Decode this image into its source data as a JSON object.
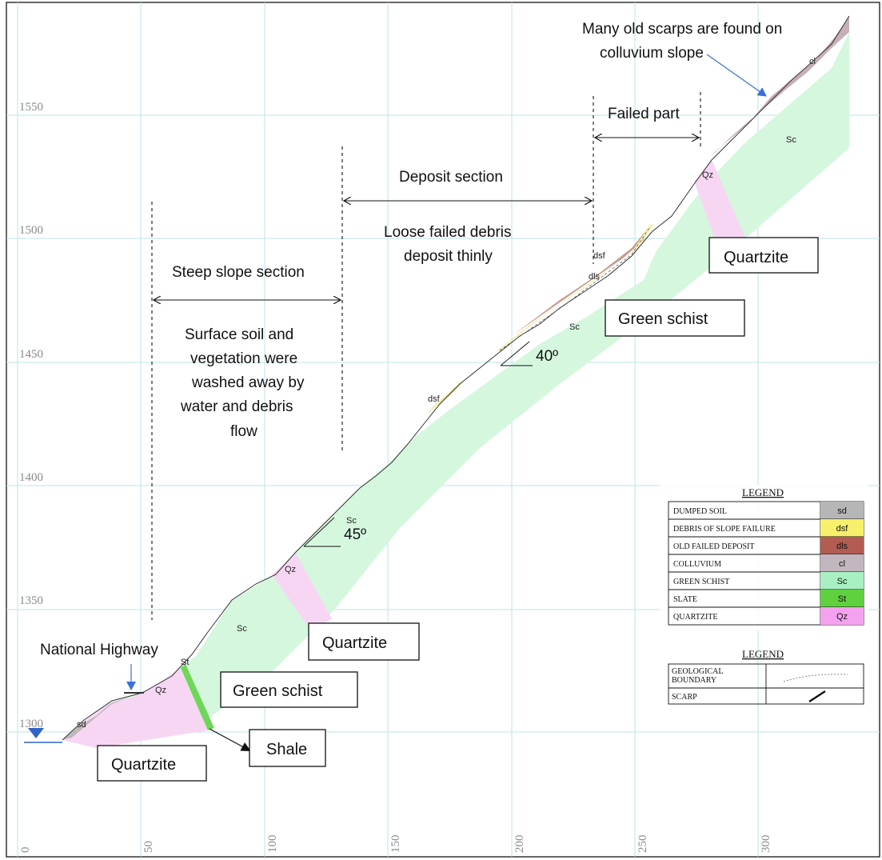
{
  "axes": {
    "x_ticks": [
      "0",
      "50",
      "100",
      "150",
      "200",
      "250",
      "300"
    ],
    "y_ticks": [
      "1300",
      "1350",
      "1400",
      "1450",
      "1500",
      "1550"
    ]
  },
  "annotations": {
    "scarps_note_1": "Many old scarps are found on",
    "scarps_note_2": "colluvium slope",
    "failed_part": "Failed part",
    "deposit_section": "Deposit section",
    "loose_debris_1": "Loose failed debris",
    "loose_debris_2": "deposit thinly",
    "steep_slope_section": "Steep slope section",
    "surface_soil_1": "Surface soil and",
    "surface_soil_2": "vegetation were",
    "surface_soil_3": "washed away by",
    "surface_soil_4": "water and debris",
    "surface_soil_5": "flow",
    "national_highway": "National Highway",
    "angle_40": "40º",
    "angle_45": "45º"
  },
  "boxes": {
    "quartzite_top": "Quartzite",
    "green_schist_upper": "Green schist",
    "quartzite_mid": "Quartzite",
    "green_schist_lower": "Green schist",
    "shale": "Shale",
    "quartzite_bottom": "Quartzite"
  },
  "unit_labels": {
    "cl": "cl",
    "sc_top": "Sc",
    "qz_top": "Qz",
    "dsf_top": "dsf",
    "dls": "dls",
    "sc_mid": "Sc",
    "dsf_mid": "dsf",
    "sc_45": "Sc",
    "qz_mid": "Qz",
    "sc_low": "Sc",
    "st": "St",
    "qz_low": "Qz",
    "sd": "sd"
  },
  "legend": {
    "title": "LEGEND",
    "rows": [
      {
        "name": "DUMPED SOIL",
        "code": "sd",
        "color": "#b6b6b6"
      },
      {
        "name": "DEBRIS OF SLOPE FAILURE",
        "code": "dsf",
        "color": "#f7f06a"
      },
      {
        "name": "OLD FAILED DEPOSIT",
        "code": "dls",
        "color": "#b25c52"
      },
      {
        "name": "COLLUVIUM",
        "code": "cl",
        "color": "#c3b7bf"
      },
      {
        "name": "GREEN SCHIST",
        "code": "Sc",
        "color": "#a8f0c2"
      },
      {
        "name": "SLATE",
        "code": "St",
        "color": "#5fd13f"
      },
      {
        "name": "QUARTZITE",
        "code": "Qz",
        "color": "#f4a2ef"
      }
    ]
  },
  "legend2": {
    "title": "LEGEND",
    "boundary_1": "GEOLOGICAL",
    "boundary_2": "BOUNDARY",
    "scarp": "SCARP"
  },
  "colors": {
    "green_schist": "#d5f7de",
    "quartzite": "#f7d6f3",
    "slate": "#6fd65a",
    "colluvium": "#c9aeb5",
    "debris": "#f3eca0",
    "old_deposit": "#c69a92",
    "dumped_soil": "#c0b8b8",
    "water": "#2f63c9",
    "arrow": "#3a6fd8"
  }
}
